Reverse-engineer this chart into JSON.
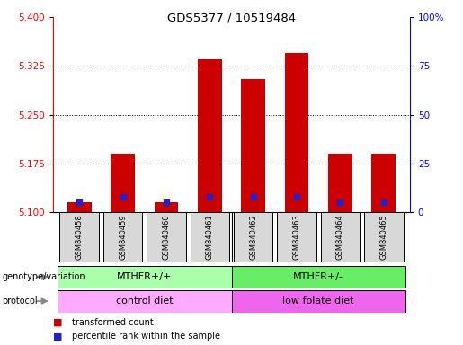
{
  "title": "GDS5377 / 10519484",
  "samples": [
    "GSM840458",
    "GSM840459",
    "GSM840460",
    "GSM840461",
    "GSM840462",
    "GSM840463",
    "GSM840464",
    "GSM840465"
  ],
  "red_values": [
    5.115,
    5.19,
    5.115,
    5.335,
    5.305,
    5.345,
    5.19,
    5.19
  ],
  "blue_pct": [
    5,
    8,
    5,
    8,
    8,
    8,
    5,
    5
  ],
  "ymin": 5.1,
  "ymax": 5.4,
  "y_ticks_left": [
    5.1,
    5.175,
    5.25,
    5.325,
    5.4
  ],
  "y_ticks_right": [
    0,
    25,
    50,
    75,
    100
  ],
  "bar_color": "#cc0000",
  "blue_color": "#2222cc",
  "genotype_groups": [
    {
      "label": "MTHFR+/+",
      "start": 0,
      "end": 4,
      "color": "#aaffaa"
    },
    {
      "label": "MTHFR+/-",
      "start": 4,
      "end": 8,
      "color": "#66ee66"
    }
  ],
  "protocol_groups": [
    {
      "label": "control diet",
      "start": 0,
      "end": 4,
      "color": "#ffaaff"
    },
    {
      "label": "low folate diet",
      "start": 4,
      "end": 8,
      "color": "#ee66ee"
    }
  ],
  "legend_items": [
    {
      "color": "#cc0000",
      "label": "transformed count"
    },
    {
      "color": "#2222cc",
      "label": "percentile rank within the sample"
    }
  ]
}
